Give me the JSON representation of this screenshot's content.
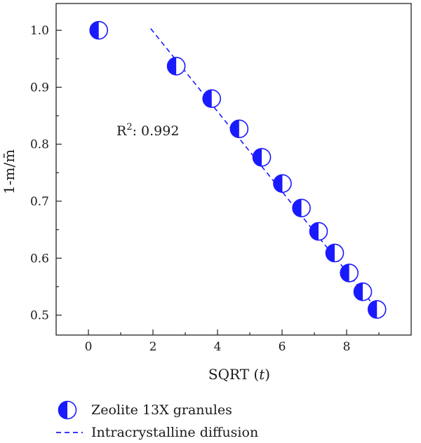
{
  "chart_data": {
    "type": "scatter",
    "xlabel": "SQRT (t)",
    "xlabel_main": "SQRT (",
    "xlabel_var": "t",
    "xlabel_close": ")",
    "ylabel": "1-m/m̄",
    "xlim": [
      -1,
      10
    ],
    "ylim": [
      0.465,
      1.047
    ],
    "x_ticks": [
      0,
      2,
      4,
      6,
      8
    ],
    "y_ticks": [
      0.5,
      0.6,
      0.7,
      0.8,
      0.9,
      1.0
    ],
    "y_tick_labels": [
      "0.5",
      "0.6",
      "0.7",
      "0.8",
      "0.9",
      "1.0"
    ],
    "grid": false,
    "legend_position": "bottom",
    "series": [
      {
        "name": "Zeolite 13X granules",
        "marker": "half-filled-circle",
        "color": "#1a1aff",
        "x": [
          0.32,
          2.72,
          3.82,
          4.67,
          5.37,
          6.01,
          6.6,
          7.13,
          7.63,
          8.08,
          8.5,
          8.94
        ],
        "y": [
          1.0,
          0.937,
          0.88,
          0.827,
          0.777,
          0.731,
          0.688,
          0.647,
          0.609,
          0.574,
          0.541,
          0.51
        ]
      },
      {
        "name": "Intracrystalline diffusion",
        "style": "dashed",
        "color": "#1a1aff",
        "x": [
          1.93,
          8.94
        ],
        "y": [
          1.003,
          0.51
        ]
      }
    ],
    "annotation": {
      "base": "R",
      "sup": "2",
      "rest": ": 0.992"
    }
  }
}
